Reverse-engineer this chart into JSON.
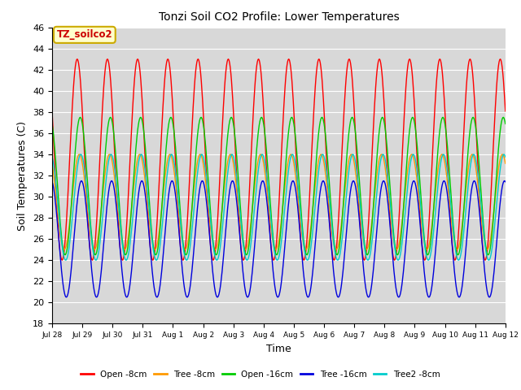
{
  "title": "Tonzi Soil CO2 Profile: Lower Temperatures",
  "xlabel": "Time",
  "ylabel": "Soil Temperatures (C)",
  "ylim": [
    18,
    46
  ],
  "background_color": "#d8d8d8",
  "annotation_text": "TZ_soilco2",
  "annotation_bg": "#ffffcc",
  "annotation_border": "#ccaa00",
  "annotation_text_color": "#cc0000",
  "x_tick_labels": [
    "Jul 28",
    "Jul 29",
    "Jul 30",
    "Jul 31",
    "Aug 1",
    "Aug 2",
    "Aug 3",
    "Aug 4",
    "Aug 5",
    "Aug 6",
    "Aug 7",
    "Aug 8",
    "Aug 9",
    "Aug 10",
    "Aug 11",
    "Aug 12"
  ],
  "series": [
    {
      "label": "Open -8cm",
      "color": "#ff0000",
      "amplitude": 9.5,
      "mean": 33.5,
      "phase_shift": 0.58,
      "mean_slope": 0.0
    },
    {
      "label": "Tree -8cm",
      "color": "#ff9900",
      "amplitude": 4.5,
      "mean": 29.5,
      "phase_shift": 0.65,
      "mean_slope": 0.0
    },
    {
      "label": "Open -16cm",
      "color": "#00cc00",
      "amplitude": 6.5,
      "mean": 31.0,
      "phase_shift": 0.68,
      "mean_slope": 0.0
    },
    {
      "label": "Tree -16cm",
      "color": "#0000dd",
      "amplitude": 5.5,
      "mean": 26.0,
      "phase_shift": 0.72,
      "mean_slope": 0.0
    },
    {
      "label": "Tree2 -8cm",
      "color": "#00cccc",
      "amplitude": 5.0,
      "mean": 29.0,
      "phase_shift": 0.7,
      "mean_slope": 0.0
    }
  ]
}
